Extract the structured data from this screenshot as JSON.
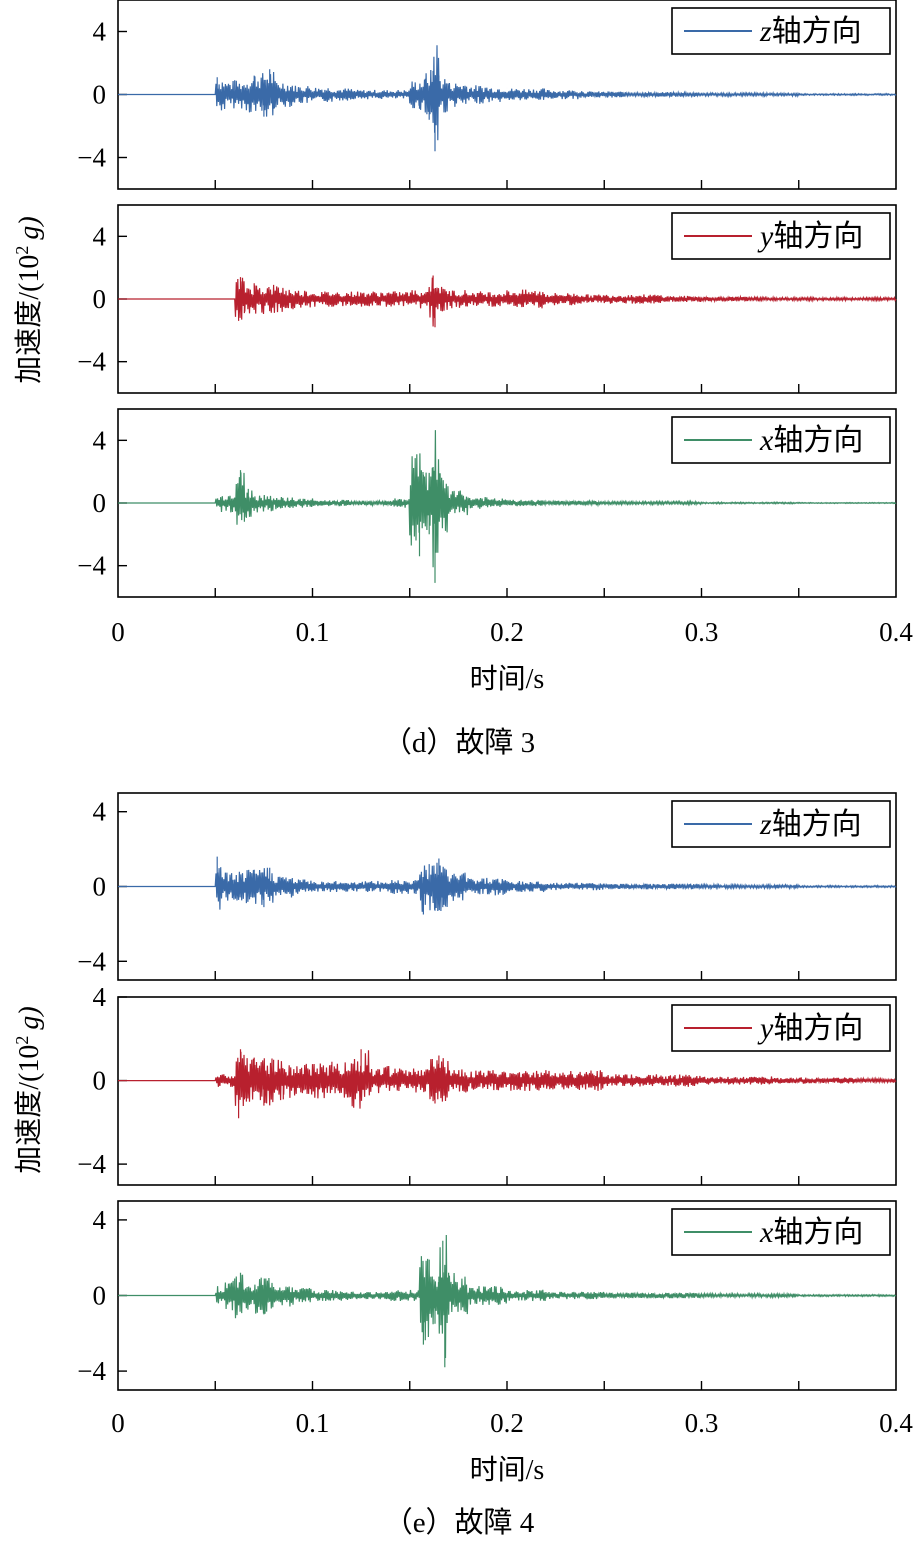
{
  "chart_data": [
    {
      "type": "line",
      "group": "d",
      "caption": "（d）故障 3",
      "xlabel": "时间/s",
      "ylabel": "加速度/(10² g)",
      "ylabel_parts": {
        "base": "加速度/(10",
        "sup": "2",
        "tail": "g)"
      },
      "xlim": [
        0,
        0.4
      ],
      "x_ticks": [
        "0",
        "0.1",
        "0.2",
        "0.3",
        "0.4"
      ],
      "panels": [
        {
          "legend": {
            "axis": "z",
            "label": "轴方向"
          },
          "color": "#3a6aa8",
          "ylim": [
            -6,
            6
          ],
          "y_ticks": [
            "4",
            "0",
            "−4"
          ],
          "series": [
            {
              "name": "z轴方向",
              "x": [
                0.0,
                0.05,
                0.051,
                0.055,
                0.06,
                0.065,
                0.07,
                0.075,
                0.078,
                0.08,
                0.085,
                0.09,
                0.1,
                0.11,
                0.12,
                0.13,
                0.14,
                0.15,
                0.155,
                0.158,
                0.16,
                0.162,
                0.163,
                0.165,
                0.17,
                0.18,
                0.19,
                0.2,
                0.22,
                0.24,
                0.25,
                0.26,
                0.3,
                0.34,
                0.35,
                0.4
              ],
              "y": [
                0.0,
                0.0,
                1.1,
                -0.7,
                0.9,
                -0.8,
                1.2,
                -1.4,
                1.6,
                -0.9,
                0.8,
                -0.6,
                0.5,
                -0.4,
                0.3,
                -0.3,
                0.2,
                0.3,
                -0.9,
                1.0,
                -1.6,
                1.5,
                -3.6,
                1.2,
                -0.8,
                0.6,
                -0.5,
                0.4,
                -0.3,
                0.2,
                -0.2,
                0.15,
                0.1,
                -0.1,
                0.05,
                0.0
              ]
            }
          ]
        },
        {
          "legend": {
            "axis": "y",
            "label": "轴方向"
          },
          "color": "#b8202e",
          "ylim": [
            -6,
            6
          ],
          "y_ticks": [
            "4",
            "0",
            "−4"
          ],
          "series": [
            {
              "name": "y轴方向",
              "x": [
                0.0,
                0.06,
                0.062,
                0.063,
                0.065,
                0.07,
                0.075,
                0.08,
                0.085,
                0.09,
                0.1,
                0.11,
                0.12,
                0.13,
                0.14,
                0.15,
                0.16,
                0.162,
                0.163,
                0.165,
                0.17,
                0.18,
                0.19,
                0.2,
                0.21,
                0.22,
                0.24,
                0.26,
                0.28,
                0.3,
                0.33,
                0.36,
                0.4
              ],
              "y": [
                0.0,
                0.0,
                -1.4,
                1.4,
                -0.9,
                1.0,
                -0.8,
                0.9,
                -0.7,
                0.6,
                -0.5,
                0.5,
                -0.4,
                0.5,
                -0.4,
                0.5,
                -0.6,
                1.5,
                -1.8,
                0.8,
                -0.6,
                0.5,
                -0.5,
                0.4,
                -0.6,
                0.4,
                -0.3,
                0.3,
                -0.2,
                0.15,
                -0.1,
                0.1,
                0.0
              ]
            }
          ]
        },
        {
          "legend": {
            "axis": "x",
            "label": "轴方向"
          },
          "color": "#3f8e67",
          "ylim": [
            -6,
            6
          ],
          "y_ticks": [
            "4",
            "0",
            "−4"
          ],
          "series": [
            {
              "name": "x轴方向",
              "x": [
                0.0,
                0.05,
                0.052,
                0.06,
                0.063,
                0.065,
                0.067,
                0.07,
                0.08,
                0.09,
                0.1,
                0.12,
                0.14,
                0.15,
                0.155,
                0.157,
                0.16,
                0.162,
                0.163,
                0.165,
                0.17,
                0.18,
                0.19,
                0.2,
                0.22,
                0.25,
                0.3,
                0.35,
                0.4
              ],
              "y": [
                0.0,
                0.0,
                0.5,
                -0.6,
                2.1,
                -1.2,
                0.9,
                -0.6,
                0.4,
                -0.3,
                0.2,
                -0.15,
                0.1,
                0.3,
                -3.4,
                1.8,
                -2.0,
                2.3,
                -5.1,
                1.9,
                -0.8,
                0.4,
                -0.3,
                0.2,
                -0.15,
                0.1,
                -0.05,
                0.03,
                0.0
              ]
            }
          ]
        }
      ]
    },
    {
      "type": "line",
      "group": "e",
      "caption": "（e）故障 4",
      "xlabel": "时间/s",
      "ylabel": "加速度/(10² g)",
      "ylabel_parts": {
        "base": "加速度/(10",
        "sup": "2",
        "tail": "g)"
      },
      "xlim": [
        0,
        0.4
      ],
      "x_ticks": [
        "0",
        "0.1",
        "0.2",
        "0.3",
        "0.4"
      ],
      "panels": [
        {
          "legend": {
            "axis": "z",
            "label": "轴方向"
          },
          "color": "#3a6aa8",
          "ylim": [
            -5,
            5
          ],
          "y_ticks": [
            "4",
            "0",
            "−4"
          ],
          "series": [
            {
              "name": "z轴方向",
              "x": [
                0.0,
                0.05,
                0.051,
                0.053,
                0.06,
                0.065,
                0.07,
                0.075,
                0.078,
                0.08,
                0.09,
                0.1,
                0.12,
                0.14,
                0.155,
                0.157,
                0.16,
                0.163,
                0.165,
                0.167,
                0.17,
                0.18,
                0.2,
                0.22,
                0.25,
                0.3,
                0.35,
                0.4
              ],
              "y": [
                0.0,
                0.0,
                1.6,
                -0.5,
                0.8,
                -0.7,
                0.9,
                -1.1,
                1.0,
                -0.6,
                0.4,
                -0.3,
                0.3,
                -0.2,
                0.4,
                -1.5,
                1.2,
                -1.3,
                1.5,
                -1.1,
                0.8,
                -0.5,
                0.3,
                -0.2,
                0.15,
                -0.1,
                0.05,
                0.0
              ]
            }
          ]
        },
        {
          "legend": {
            "axis": "y",
            "label": "轴方向"
          },
          "color": "#b8202e",
          "ylim": [
            -5,
            4
          ],
          "y_ticks": [
            "4",
            "0",
            "−4"
          ],
          "series": [
            {
              "name": "y轴方向",
              "x": [
                0.0,
                0.05,
                0.055,
                0.06,
                0.062,
                0.063,
                0.065,
                0.07,
                0.075,
                0.08,
                0.085,
                0.09,
                0.1,
                0.11,
                0.12,
                0.125,
                0.13,
                0.14,
                0.15,
                0.16,
                0.163,
                0.165,
                0.17,
                0.18,
                0.2,
                0.22,
                0.25,
                0.28,
                0.3,
                0.34,
                0.38,
                0.4
              ],
              "y": [
                0.0,
                0.0,
                0.3,
                -0.2,
                -1.8,
                1.5,
                -0.9,
                1.1,
                -1.2,
                1.0,
                -0.9,
                0.8,
                -0.7,
                0.9,
                -0.6,
                1.5,
                -0.7,
                0.6,
                -0.5,
                0.6,
                -1.1,
                1.2,
                -0.6,
                0.5,
                -0.4,
                0.5,
                -0.3,
                0.3,
                -0.2,
                0.15,
                -0.1,
                0.0
              ]
            }
          ]
        },
        {
          "legend": {
            "axis": "x",
            "label": "轴方向"
          },
          "color": "#3f8e67",
          "ylim": [
            -5,
            5
          ],
          "y_ticks": [
            "4",
            "0",
            "−4"
          ],
          "series": [
            {
              "name": "x轴方向",
              "x": [
                0.0,
                0.05,
                0.051,
                0.055,
                0.06,
                0.063,
                0.065,
                0.07,
                0.075,
                0.08,
                0.09,
                0.1,
                0.12,
                0.14,
                0.155,
                0.157,
                0.16,
                0.163,
                0.165,
                0.167,
                0.168,
                0.17,
                0.18,
                0.2,
                0.22,
                0.25,
                0.3,
                0.35,
                0.4
              ],
              "y": [
                0.0,
                0.0,
                0.4,
                -0.5,
                0.9,
                1.2,
                -0.8,
                0.7,
                -1.0,
                0.6,
                -0.4,
                0.3,
                -0.2,
                0.2,
                0.3,
                -2.6,
                1.9,
                -1.5,
                1.0,
                2.9,
                -3.8,
                1.2,
                -0.5,
                0.3,
                -0.2,
                0.15,
                -0.1,
                0.05,
                0.0
              ]
            }
          ]
        }
      ]
    }
  ]
}
